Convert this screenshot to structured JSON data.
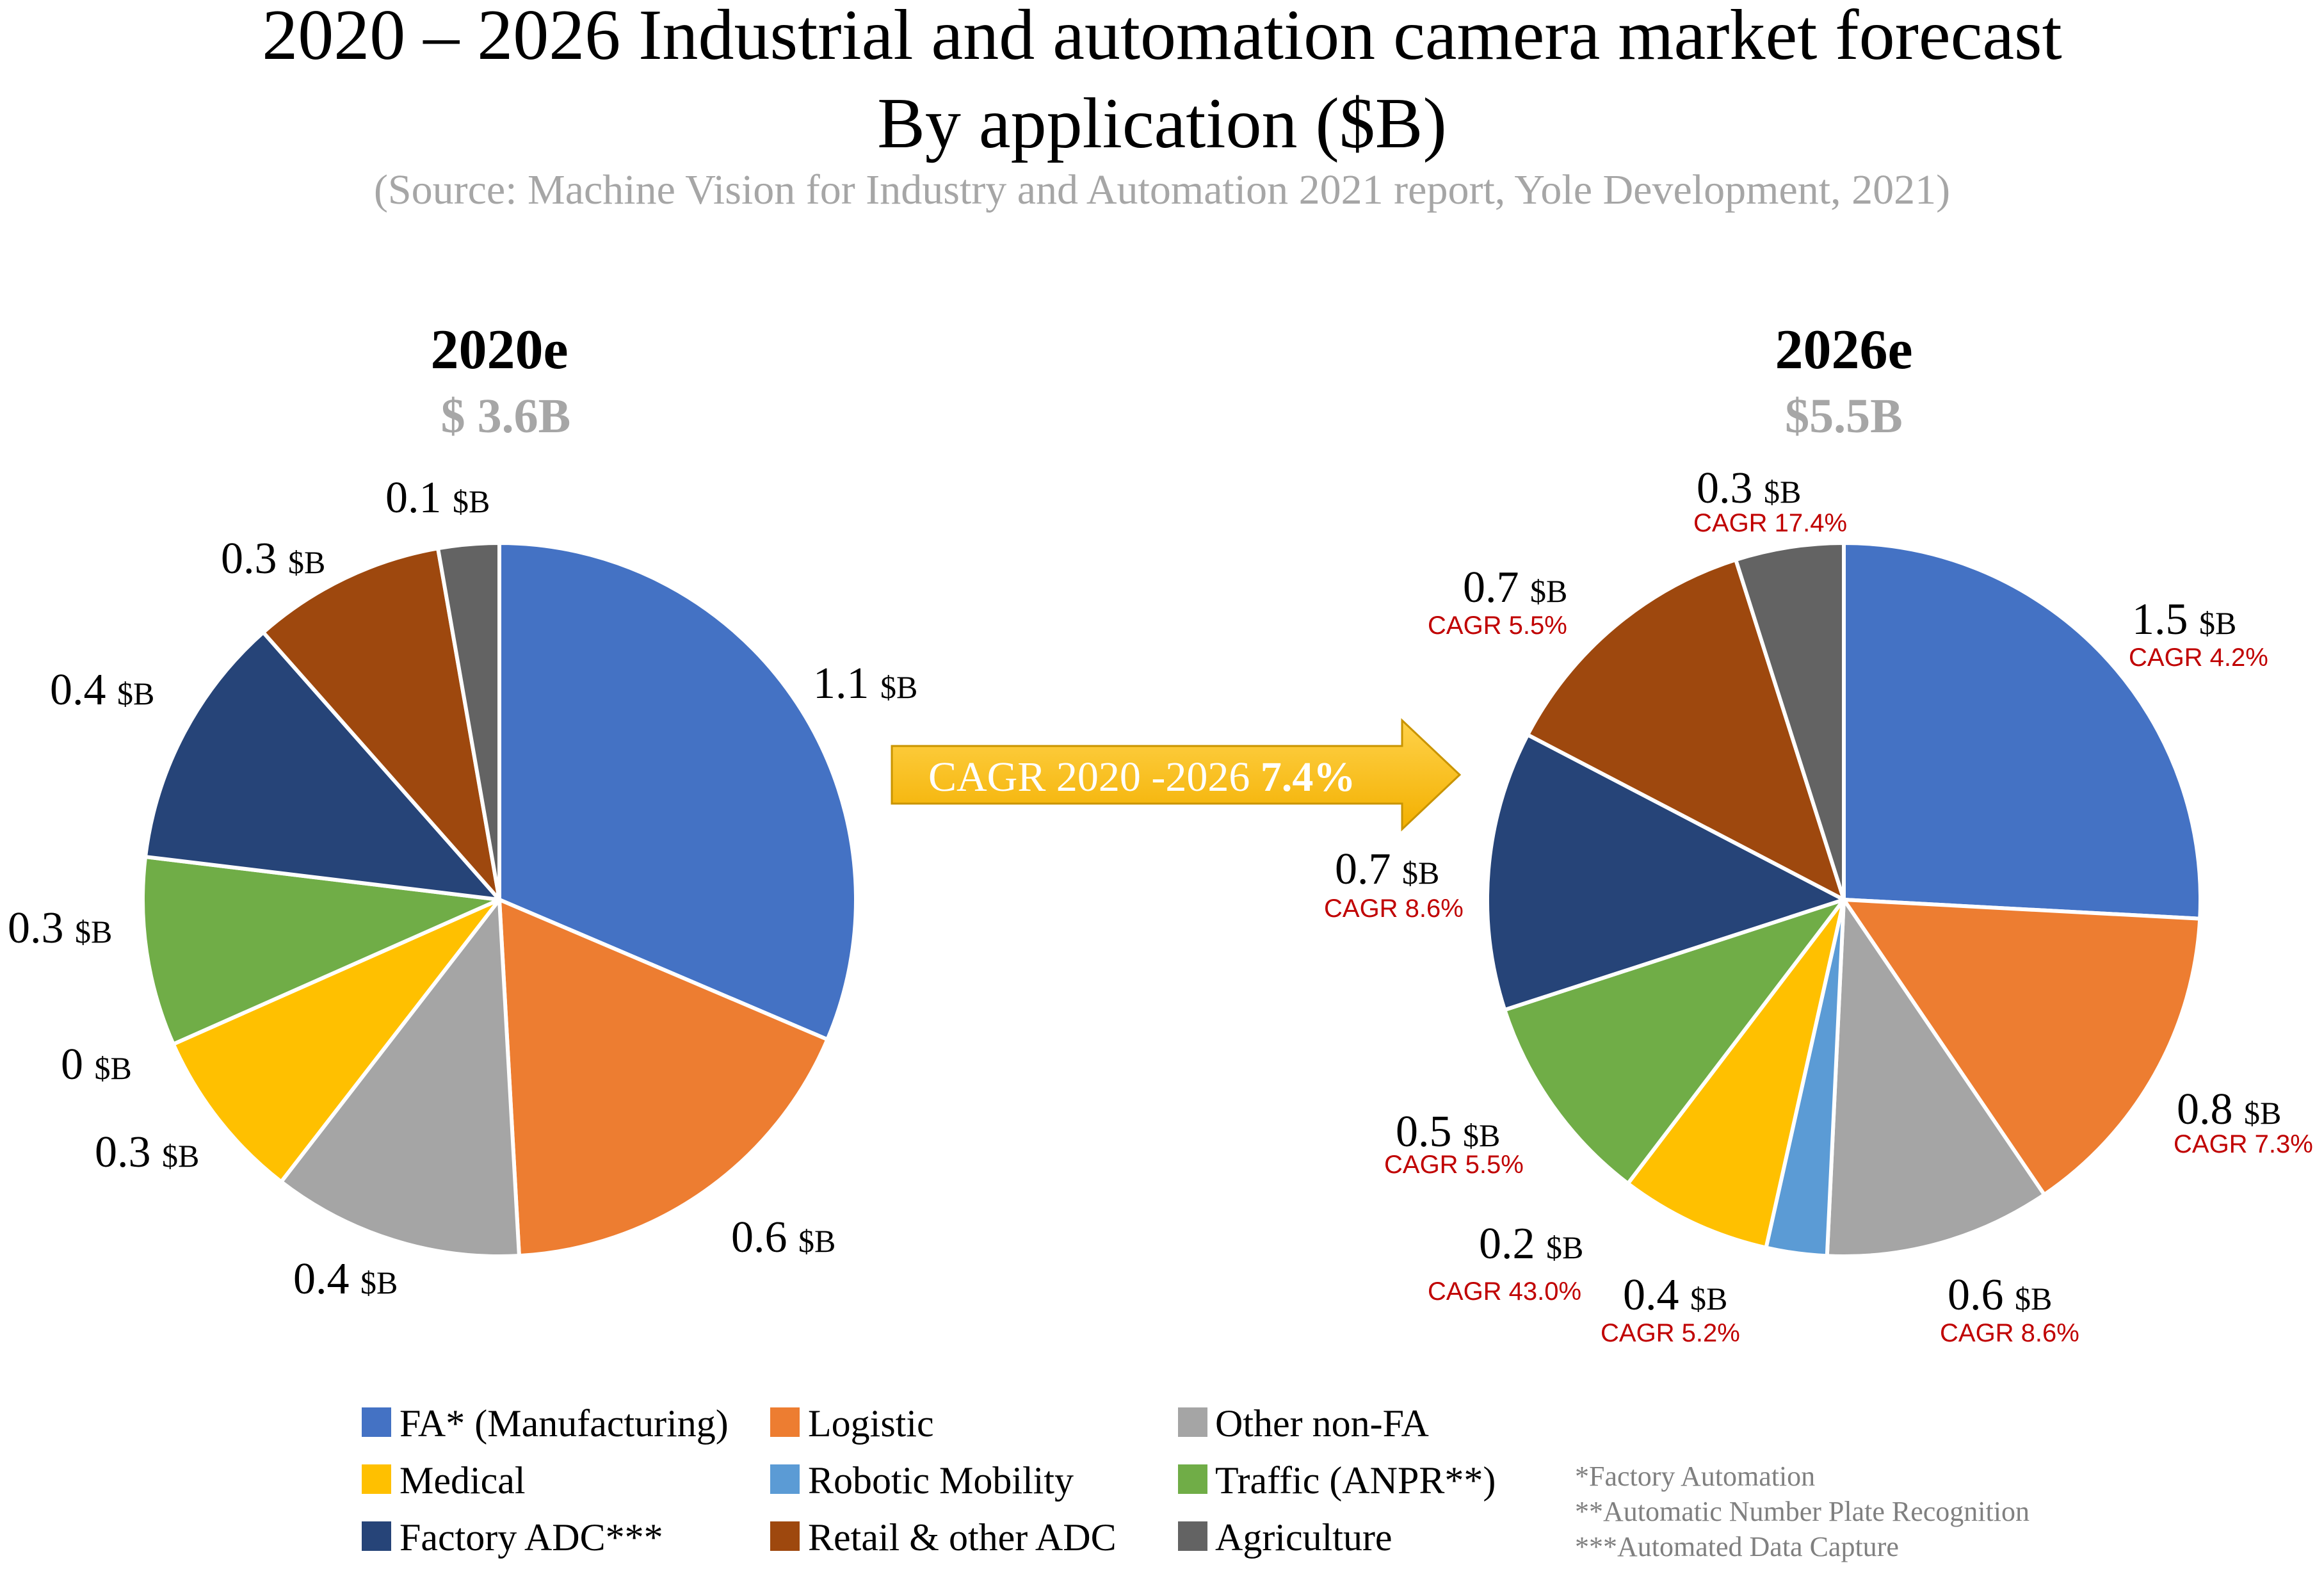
{
  "chart_data": {
    "type": "pie",
    "title": "2020 – 2026 Industrial and automation camera market forecast",
    "subtitle": "By application ($B)",
    "source": "(Source: Machine Vision for Industry and Automation 2021 report, Yole Development, 2021)",
    "unit": "$B",
    "categories": [
      "FA* (Manufacturing)",
      "Logistic",
      "Other non-FA",
      "Robotic Mobility",
      "Medical",
      "Traffic (ANPR**)",
      "Factory ADC***",
      "Retail & other ADC",
      "Agriculture"
    ],
    "colors": [
      "#4472C4",
      "#ED7D31",
      "#A5A5A5",
      "#5B9BD5",
      "#FFC000",
      "#70AD47",
      "#264478",
      "#9E480E",
      "#636363"
    ],
    "pies": [
      {
        "year": "2020e",
        "total": "$ 3.6B",
        "values": [
          1.1,
          0.6,
          0.4,
          0,
          0.3,
          0.3,
          0.4,
          0.3,
          0.1
        ],
        "slice_fractions": [
          0.3055,
          0.1722,
          0.1105,
          0.0,
          0.0767,
          0.0832,
          0.1125,
          0.0852,
          0.0268
        ],
        "labels": [
          {
            "value": "1.1",
            "unit": "$B"
          },
          {
            "value": "0.6",
            "unit": "$B"
          },
          {
            "value": "0.4",
            "unit": "$B"
          },
          {
            "value": "0",
            "unit": "$B"
          },
          {
            "value": "0.3",
            "unit": "$B"
          },
          {
            "value": "0.3",
            "unit": "$B"
          },
          {
            "value": "0.4",
            "unit": "$B"
          },
          {
            "value": "0.3",
            "unit": "$B"
          },
          {
            "value": "0.1",
            "unit": "$B"
          }
        ]
      },
      {
        "year": "2026e",
        "total": "$5.5B",
        "values": [
          1.5,
          0.8,
          0.6,
          0.2,
          0.4,
          0.5,
          0.7,
          0.7,
          0.3
        ],
        "slice_fractions": [
          0.2585,
          0.1465,
          0.1025,
          0.0275,
          0.0685,
          0.0965,
          0.1265,
          0.1245,
          0.049
        ],
        "labels": [
          {
            "value": "1.5",
            "unit": "$B",
            "cagr": "CAGR 4.2%"
          },
          {
            "value": "0.8",
            "unit": "$B",
            "cagr": "CAGR 7.3%"
          },
          {
            "value": "0.6",
            "unit": "$B",
            "cagr": "CAGR 8.6%"
          },
          {
            "value": "0.2",
            "unit": "$B",
            "cagr": "CAGR 43.0%"
          },
          {
            "value": "0.4",
            "unit": "$B",
            "cagr": "CAGR  5.2%"
          },
          {
            "value": "0.5",
            "unit": "$B",
            "cagr": "CAGR 5.5%"
          },
          {
            "value": "0.7",
            "unit": "$B",
            "cagr": "CAGR 8.6%"
          },
          {
            "value": "0.7",
            "unit": "$B",
            "cagr": "CAGR  5.5%"
          },
          {
            "value": "0.3",
            "unit": "$B",
            "cagr": "CAGR 17.4%"
          }
        ]
      }
    ],
    "arrow": {
      "label": "CAGR 2020 -2026",
      "value": "7.4%"
    },
    "legend": [
      "FA* (Manufacturing)",
      "Logistic",
      "Other non-FA",
      "Medical",
      "Robotic Mobility",
      "Traffic (ANPR**)",
      "Factory ADC***",
      "Retail & other ADC",
      "Agriculture"
    ],
    "footnotes": [
      "*Factory Automation",
      "**Automatic Number Plate Recognition",
      "***Automated Data Capture"
    ]
  }
}
